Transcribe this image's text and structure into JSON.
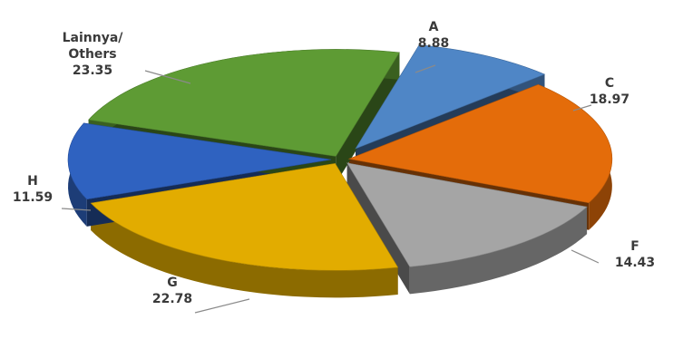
{
  "chart_data": {
    "type": "pie",
    "title": "",
    "subtitle": "",
    "style": "exploded-3d",
    "legend": "none",
    "grid": false,
    "slices": [
      {
        "label": "A",
        "value": 8.88,
        "color": "#4f86c6",
        "display": "8.88"
      },
      {
        "label": "C",
        "value": 18.97,
        "color": "#e46c0a",
        "display": "18.97"
      },
      {
        "label": "F",
        "value": 14.43,
        "color": "#a5a5a5",
        "display": "14.43"
      },
      {
        "label": "G",
        "value": 22.78,
        "color": "#e2ac00",
        "display": "22.78"
      },
      {
        "label": "H",
        "value": 11.59,
        "color": "#2f62c0",
        "display": "11.59"
      },
      {
        "label": "Lainnya/ Others",
        "label_lines": [
          "Lainnya/",
          "Others"
        ],
        "value": 23.35,
        "color": "#5e9b34",
        "display": "23.35"
      }
    ]
  }
}
